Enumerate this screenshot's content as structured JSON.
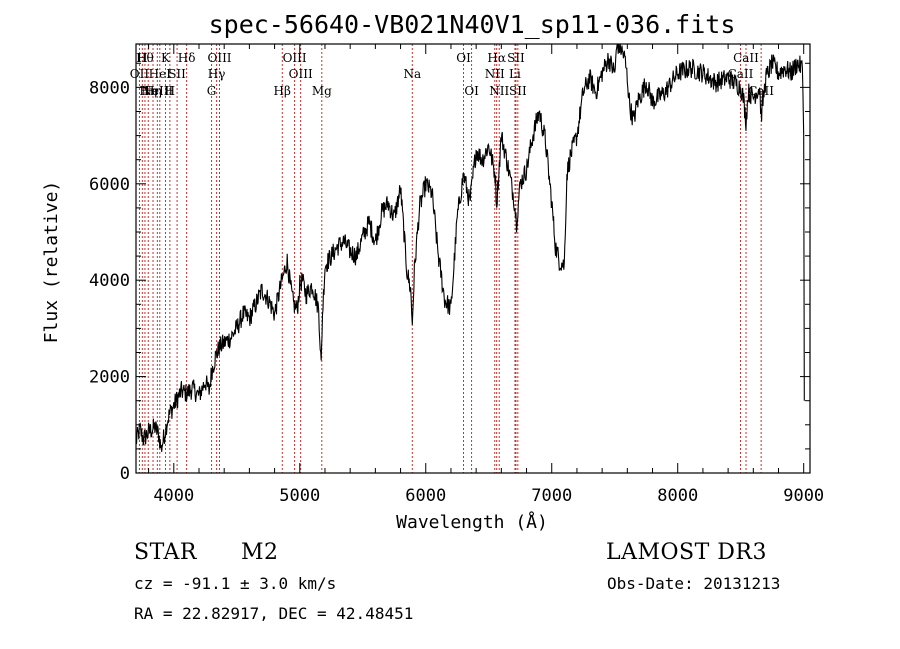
{
  "chart_data": {
    "type": "line",
    "title": "spec-56640-VB021N40V1_sp11-036.fits",
    "xlabel": "Wavelength (Å)",
    "ylabel": "Flux (relative)",
    "xlim": [
      3700,
      9050
    ],
    "ylim": [
      0,
      8900
    ],
    "xticks": [
      4000,
      5000,
      6000,
      7000,
      8000,
      9000
    ],
    "xtick_labels": [
      "4000",
      "5000",
      "6000",
      "7000",
      "8000",
      "9000"
    ],
    "yticks": [
      0,
      2000,
      4000,
      6000,
      8000
    ],
    "ytick_labels": [
      "0",
      "2000",
      "4000",
      "6000",
      "8000"
    ],
    "grid": false,
    "series": [
      {
        "name": "spectrum",
        "x": [
          3700,
          3730,
          3760,
          3800,
          3850,
          3880,
          3900,
          3930,
          3950,
          3970,
          4000,
          4030,
          4060,
          4100,
          4150,
          4200,
          4250,
          4280,
          4300,
          4330,
          4360,
          4400,
          4450,
          4500,
          4550,
          4600,
          4650,
          4700,
          4750,
          4800,
          4850,
          4870,
          4900,
          4930,
          4950,
          4980,
          5000,
          5020,
          5050,
          5100,
          5150,
          5170,
          5180,
          5200,
          5250,
          5300,
          5350,
          5400,
          5450,
          5500,
          5550,
          5600,
          5650,
          5700,
          5750,
          5800,
          5850,
          5880,
          5893,
          5910,
          5950,
          6000,
          6050,
          6100,
          6150,
          6200,
          6250,
          6300,
          6350,
          6400,
          6450,
          6500,
          6550,
          6563,
          6600,
          6650,
          6700,
          6720,
          6750,
          6800,
          6850,
          6900,
          6950,
          7000,
          7030,
          7060,
          7100,
          7120,
          7150,
          7200,
          7250,
          7300,
          7350,
          7400,
          7450,
          7500,
          7520,
          7550,
          7580,
          7600,
          7620,
          7650,
          7680,
          7700,
          7750,
          7800,
          7850,
          7900,
          8000,
          8100,
          8200,
          8300,
          8400,
          8500,
          8520,
          8542,
          8560,
          8600,
          8650,
          8662,
          8700,
          8750,
          8800,
          8850,
          8900,
          8950,
          8990,
          9000,
          9005
        ],
        "values": [
          650,
          900,
          700,
          850,
          950,
          800,
          500,
          850,
          1100,
          1250,
          1400,
          1550,
          1700,
          1650,
          1750,
          1600,
          1900,
          1700,
          2100,
          2400,
          2600,
          2700,
          2800,
          3000,
          3300,
          3200,
          3500,
          3800,
          3600,
          3300,
          3900,
          4100,
          4400,
          3800,
          3500,
          3400,
          3900,
          4000,
          3700,
          3900,
          3400,
          2200,
          3300,
          4300,
          4500,
          4700,
          4800,
          4600,
          4500,
          4900,
          5200,
          4800,
          5400,
          5600,
          5300,
          5900,
          4200,
          3800,
          3100,
          4200,
          5500,
          6000,
          5800,
          4500,
          3600,
          3400,
          5300,
          6200,
          5600,
          6700,
          6500,
          6800,
          6200,
          5600,
          7000,
          6400,
          5700,
          5200,
          6000,
          6300,
          7000,
          7500,
          6900,
          5600,
          4700,
          4400,
          4300,
          6200,
          6600,
          7000,
          7900,
          8200,
          7900,
          8300,
          8600,
          8300,
          8900,
          8800,
          8600,
          8200,
          7600,
          7300,
          7700,
          7800,
          8100,
          7700,
          7800,
          7900,
          8300,
          8400,
          8300,
          8100,
          8200,
          8000,
          7800,
          7300,
          7900,
          7800,
          8000,
          7400,
          8200,
          8500,
          8300,
          8400,
          8300,
          8500,
          8400,
          7000,
          1500
        ]
      }
    ],
    "emission_lines": [
      {
        "wavelength": 3727,
        "label": "OII",
        "row": 2
      },
      {
        "wavelength": 3750,
        "label": "H",
        "row": 1
      },
      {
        "wavelength": 3771,
        "label": "Hθ",
        "row": 1
      },
      {
        "wavelength": 3797,
        "label": "Hη",
        "row": 3
      },
      {
        "wavelength": 3835,
        "label": "Hη",
        "row": 3
      },
      {
        "wavelength": 3869,
        "label": "NeIII",
        "row": 3
      },
      {
        "wavelength": 3889,
        "label": "HeI",
        "row": 2
      },
      {
        "wavelength": 3934,
        "label": "K",
        "row": 1
      },
      {
        "wavelength": 3969,
        "label": "H",
        "row": 3
      },
      {
        "wavelength": 4026,
        "label": "SII",
        "row": 2
      },
      {
        "wavelength": 4102,
        "label": "Hδ",
        "row": 1
      },
      {
        "wavelength": 4300,
        "label": "G",
        "row": 3
      },
      {
        "wavelength": 4340,
        "label": "Hγ",
        "row": 2
      },
      {
        "wavelength": 4363,
        "label": "OIII",
        "row": 1
      },
      {
        "wavelength": 4861,
        "label": "Hβ",
        "row": 3
      },
      {
        "wavelength": 4959,
        "label": "OIII",
        "row": 1
      },
      {
        "wavelength": 5007,
        "label": "OIII",
        "row": 2
      },
      {
        "wavelength": 5175,
        "label": "Mg",
        "row": 3
      },
      {
        "wavelength": 5893,
        "label": "Na",
        "row": 2
      },
      {
        "wavelength": 6300,
        "label": "OI",
        "row": 1
      },
      {
        "wavelength": 6364,
        "label": "OI",
        "row": 3
      },
      {
        "wavelength": 6548,
        "label": "NII",
        "row": 2
      },
      {
        "wavelength": 6563,
        "label": "Hα",
        "row": 1
      },
      {
        "wavelength": 6583,
        "label": "NII",
        "row": 3
      },
      {
        "wavelength": 6708,
        "label": "Li",
        "row": 2
      },
      {
        "wavelength": 6716,
        "label": "SII",
        "row": 1
      },
      {
        "wavelength": 6731,
        "label": "SII",
        "row": 3
      },
      {
        "wavelength": 8498,
        "label": "CaII",
        "row": 2
      },
      {
        "wavelength": 8542,
        "label": "CaII",
        "row": 1
      },
      {
        "wavelength": 8662,
        "label": "CaII",
        "row": 3
      }
    ]
  },
  "info": {
    "object_type": "STAR",
    "subclass": "M2",
    "survey": "LAMOST DR3",
    "cz": "cz = -91.1 ± 3.0 km/s",
    "obs_date": "Obs-Date: 20131213",
    "coords": "RA =  22.82917, DEC =  42.48451"
  },
  "colors": {
    "spectrum": "#000000",
    "line_marker": "#b22222",
    "axis": "#000000"
  }
}
